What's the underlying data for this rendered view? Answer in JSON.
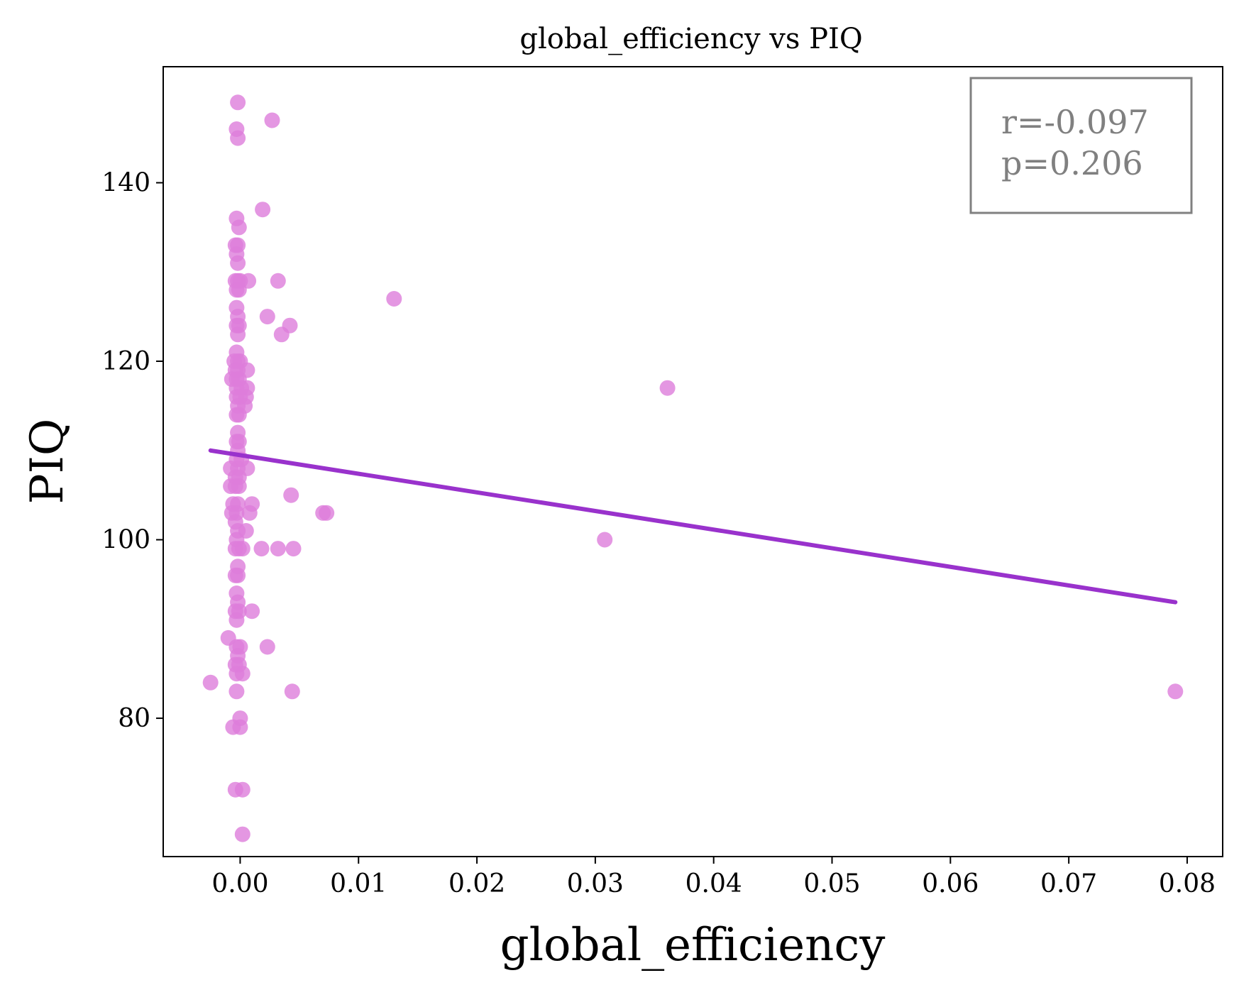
{
  "chart_data": {
    "type": "scatter",
    "title": "global_efficiency vs PIQ",
    "xlabel": "global_efficiency",
    "ylabel": "PIQ",
    "xlim": [
      -0.0065,
      0.083
    ],
    "ylim": [
      64.5,
      153
    ],
    "x_ticks": [
      0.0,
      0.01,
      0.02,
      0.03,
      0.04,
      0.05,
      0.06,
      0.07,
      0.08
    ],
    "x_tick_labels": [
      "0.00",
      "0.01",
      "0.02",
      "0.03",
      "0.04",
      "0.05",
      "0.06",
      "0.07",
      "0.08"
    ],
    "y_ticks": [
      80,
      100,
      120,
      140
    ],
    "y_tick_labels": [
      "80",
      "100",
      "120",
      "140"
    ],
    "grid": false,
    "annotation": {
      "lines": [
        "r=-0.097",
        "p=0.206"
      ],
      "placement": "top-right"
    },
    "colors": {
      "points": "#dd7ddb",
      "fit_line": "#9932cc",
      "annotation": "#808080",
      "axes": "#000000"
    },
    "fit_line": {
      "x": [
        -0.0025,
        0.079
      ],
      "y": [
        110.0,
        93.0
      ]
    },
    "points": [
      {
        "x": -0.0002,
        "y": 149
      },
      {
        "x": -0.0003,
        "y": 146
      },
      {
        "x": -0.0002,
        "y": 145
      },
      {
        "x": 0.0027,
        "y": 147
      },
      {
        "x": 0.0019,
        "y": 137
      },
      {
        "x": -0.0003,
        "y": 136
      },
      {
        "x": -0.0001,
        "y": 135
      },
      {
        "x": -0.0004,
        "y": 133
      },
      {
        "x": -0.0002,
        "y": 133
      },
      {
        "x": -0.0003,
        "y": 132
      },
      {
        "x": -0.0002,
        "y": 131
      },
      {
        "x": -0.0004,
        "y": 129
      },
      {
        "x": -0.0002,
        "y": 129
      },
      {
        "x": 0.0,
        "y": 129
      },
      {
        "x": 0.0007,
        "y": 129
      },
      {
        "x": 0.0032,
        "y": 129
      },
      {
        "x": -0.0003,
        "y": 128
      },
      {
        "x": -0.0001,
        "y": 128
      },
      {
        "x": 0.013,
        "y": 127
      },
      {
        "x": -0.0003,
        "y": 126
      },
      {
        "x": -0.0002,
        "y": 125
      },
      {
        "x": 0.0023,
        "y": 125
      },
      {
        "x": -0.0003,
        "y": 124
      },
      {
        "x": -0.0001,
        "y": 124
      },
      {
        "x": 0.0042,
        "y": 124
      },
      {
        "x": -0.0002,
        "y": 123
      },
      {
        "x": 0.0035,
        "y": 123
      },
      {
        "x": -0.0003,
        "y": 121
      },
      {
        "x": -0.0005,
        "y": 120
      },
      {
        "x": -0.0002,
        "y": 120
      },
      {
        "x": 0.0,
        "y": 120
      },
      {
        "x": -0.0004,
        "y": 119
      },
      {
        "x": -0.0002,
        "y": 119
      },
      {
        "x": 0.0006,
        "y": 119
      },
      {
        "x": -0.0007,
        "y": 118
      },
      {
        "x": -0.0003,
        "y": 118
      },
      {
        "x": -0.0001,
        "y": 118
      },
      {
        "x": -0.0003,
        "y": 117
      },
      {
        "x": 0.0001,
        "y": 117
      },
      {
        "x": 0.0006,
        "y": 117
      },
      {
        "x": -0.0003,
        "y": 116
      },
      {
        "x": 0.0,
        "y": 116
      },
      {
        "x": 0.0005,
        "y": 116
      },
      {
        "x": -0.0002,
        "y": 115
      },
      {
        "x": 0.0004,
        "y": 115
      },
      {
        "x": -0.0003,
        "y": 114
      },
      {
        "x": -0.0001,
        "y": 114
      },
      {
        "x": -0.0002,
        "y": 112
      },
      {
        "x": -0.0003,
        "y": 111
      },
      {
        "x": -0.0001,
        "y": 111
      },
      {
        "x": -0.0002,
        "y": 110
      },
      {
        "x": -0.0003,
        "y": 109
      },
      {
        "x": 0.0001,
        "y": 109
      },
      {
        "x": -0.0008,
        "y": 108
      },
      {
        "x": -0.0002,
        "y": 108
      },
      {
        "x": 0.0006,
        "y": 108
      },
      {
        "x": -0.0004,
        "y": 107
      },
      {
        "x": -0.0001,
        "y": 107
      },
      {
        "x": -0.0008,
        "y": 106
      },
      {
        "x": -0.0004,
        "y": 106
      },
      {
        "x": -0.0001,
        "y": 106
      },
      {
        "x": 0.0043,
        "y": 105
      },
      {
        "x": -0.0006,
        "y": 104
      },
      {
        "x": -0.0002,
        "y": 104
      },
      {
        "x": 0.001,
        "y": 104
      },
      {
        "x": -0.0007,
        "y": 103
      },
      {
        "x": -0.0003,
        "y": 103
      },
      {
        "x": 0.0008,
        "y": 103
      },
      {
        "x": 0.007,
        "y": 103
      },
      {
        "x": 0.0073,
        "y": 103
      },
      {
        "x": -0.0004,
        "y": 102
      },
      {
        "x": -0.0002,
        "y": 101
      },
      {
        "x": 0.0005,
        "y": 101
      },
      {
        "x": -0.0003,
        "y": 100
      },
      {
        "x": 0.0308,
        "y": 100
      },
      {
        "x": -0.0004,
        "y": 99
      },
      {
        "x": -0.0001,
        "y": 99
      },
      {
        "x": 0.0002,
        "y": 99
      },
      {
        "x": 0.0018,
        "y": 99
      },
      {
        "x": 0.0032,
        "y": 99
      },
      {
        "x": 0.0045,
        "y": 99
      },
      {
        "x": -0.0002,
        "y": 97
      },
      {
        "x": -0.0004,
        "y": 96
      },
      {
        "x": -0.0002,
        "y": 96
      },
      {
        "x": -0.0003,
        "y": 94
      },
      {
        "x": -0.0002,
        "y": 93
      },
      {
        "x": -0.0004,
        "y": 92
      },
      {
        "x": -0.0001,
        "y": 92
      },
      {
        "x": 0.001,
        "y": 92
      },
      {
        "x": -0.0003,
        "y": 91
      },
      {
        "x": -0.001,
        "y": 89
      },
      {
        "x": -0.0003,
        "y": 88
      },
      {
        "x": 0.0,
        "y": 88
      },
      {
        "x": 0.0023,
        "y": 88
      },
      {
        "x": -0.0002,
        "y": 87
      },
      {
        "x": -0.0004,
        "y": 86
      },
      {
        "x": -0.0001,
        "y": 86
      },
      {
        "x": -0.0003,
        "y": 85
      },
      {
        "x": 0.0002,
        "y": 85
      },
      {
        "x": -0.0025,
        "y": 84
      },
      {
        "x": -0.0003,
        "y": 83
      },
      {
        "x": 0.0044,
        "y": 83
      },
      {
        "x": 0.079,
        "y": 83
      },
      {
        "x": 0.0,
        "y": 80
      },
      {
        "x": -0.0006,
        "y": 79
      },
      {
        "x": 0.0,
        "y": 79
      },
      {
        "x": -0.0004,
        "y": 72
      },
      {
        "x": 0.0002,
        "y": 72
      },
      {
        "x": 0.0002,
        "y": 67
      },
      {
        "x": 0.0361,
        "y": 117
      }
    ]
  }
}
